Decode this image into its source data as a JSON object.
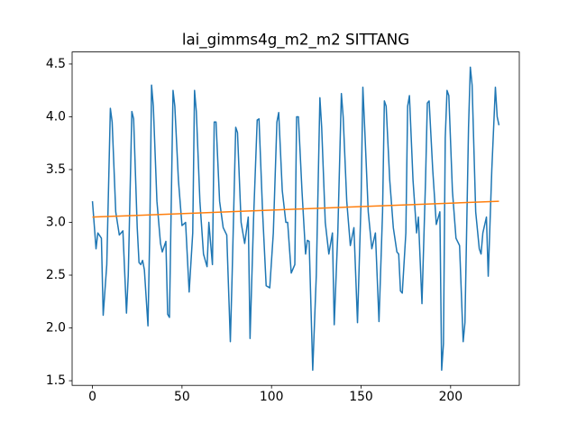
{
  "chart_data": {
    "type": "line",
    "title": "lai_gimms4g_m2_m2 SITTANG",
    "xlim": [
      -11.35,
      238.35
    ],
    "ylim": [
      1.456,
      4.614
    ],
    "xticks": [
      0,
      50,
      100,
      150,
      200
    ],
    "yticks": [
      1.5,
      {
        "value": 2,
        "label": "2.0"
      },
      2.5,
      {
        "value": 3,
        "label": "3.0"
      },
      3.5,
      {
        "value": 4,
        "label": "4.0"
      },
      4.5
    ],
    "series": [
      {
        "color": "#1f77b4",
        "x": [
          0,
          2,
          3,
          5,
          6,
          8,
          10,
          11,
          13,
          15,
          17,
          19,
          20,
          22,
          23,
          25,
          26,
          27,
          28,
          29,
          31,
          32,
          33,
          34,
          36,
          38,
          39,
          41,
          42,
          43,
          45,
          46,
          48,
          50,
          52,
          54,
          56,
          57,
          58,
          60,
          62,
          64,
          65,
          67,
          68,
          69,
          71,
          73,
          75,
          77,
          78,
          80,
          81,
          83,
          85,
          87,
          88,
          90,
          92,
          93,
          95,
          97,
          99,
          101,
          103,
          104,
          106,
          108,
          109,
          111,
          113,
          114,
          115,
          117,
          119,
          120,
          121,
          123,
          125,
          127,
          128,
          130,
          132,
          134,
          135,
          137,
          139,
          140,
          142,
          144,
          146,
          148,
          150,
          151,
          152,
          154,
          156,
          158,
          160,
          162,
          163,
          164,
          166,
          168,
          170,
          171,
          172,
          173,
          175,
          176,
          177,
          179,
          181,
          182,
          184,
          186,
          187,
          188,
          190,
          192,
          194,
          195,
          196,
          197,
          198,
          199,
          201,
          203,
          205,
          207,
          208,
          210,
          211,
          212,
          214,
          216,
          217,
          218,
          220,
          221,
          223,
          225,
          226,
          227
        ],
        "values": [
          3.2,
          2.75,
          2.9,
          2.85,
          2.12,
          2.6,
          4.08,
          3.95,
          3.1,
          2.88,
          2.92,
          2.14,
          2.5,
          4.05,
          3.98,
          2.95,
          2.62,
          2.6,
          2.64,
          2.55,
          2.02,
          2.9,
          4.3,
          4.1,
          3.2,
          2.8,
          2.72,
          2.82,
          2.13,
          2.1,
          4.25,
          4.1,
          3.4,
          2.97,
          3.0,
          2.34,
          2.9,
          4.25,
          4.05,
          3.2,
          2.7,
          2.58,
          3.0,
          2.6,
          3.95,
          3.95,
          3.2,
          2.95,
          2.88,
          1.87,
          2.5,
          3.9,
          3.85,
          3.0,
          2.8,
          3.05,
          1.9,
          3.05,
          3.97,
          3.98,
          3.1,
          2.4,
          2.38,
          2.9,
          3.95,
          4.04,
          3.3,
          3.0,
          3.0,
          2.52,
          2.6,
          4.0,
          4.0,
          3.3,
          2.7,
          2.83,
          2.82,
          1.6,
          2.5,
          4.18,
          3.9,
          3.0,
          2.7,
          2.9,
          2.03,
          2.9,
          4.22,
          4.0,
          3.2,
          2.78,
          2.95,
          2.05,
          3.2,
          4.28,
          3.9,
          3.1,
          2.75,
          2.9,
          2.06,
          3.1,
          4.15,
          4.1,
          3.4,
          2.95,
          2.72,
          2.7,
          2.35,
          2.33,
          2.9,
          4.1,
          4.2,
          3.4,
          2.9,
          3.05,
          2.23,
          3.4,
          4.13,
          4.15,
          3.5,
          2.98,
          3.1,
          1.6,
          1.85,
          3.8,
          4.25,
          4.2,
          3.3,
          2.85,
          2.78,
          1.87,
          2.05,
          3.9,
          4.47,
          4.3,
          3.1,
          2.75,
          2.7,
          2.9,
          3.05,
          2.49,
          3.5,
          4.28,
          4.0,
          3.92
        ]
      },
      {
        "color": "#ff7f0e",
        "x": [
          0,
          227
        ],
        "values": [
          3.05,
          3.2
        ]
      }
    ]
  }
}
